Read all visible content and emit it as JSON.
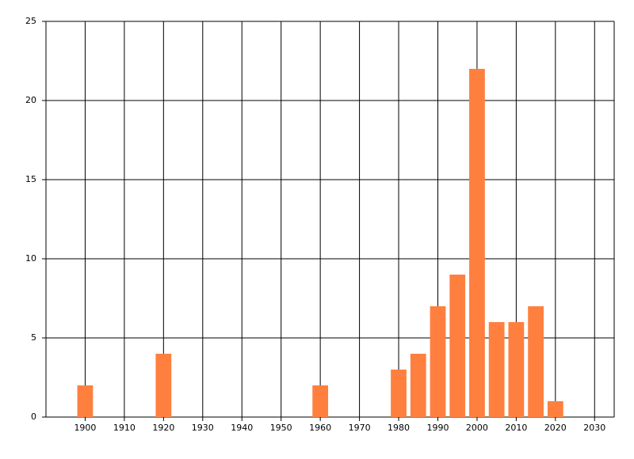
{
  "chart_data": {
    "type": "bar",
    "x": [
      1900,
      1920,
      1960,
      1980,
      1985,
      1990,
      1995,
      2000,
      2005,
      2010,
      2015,
      2020
    ],
    "values": [
      2,
      4,
      2,
      3,
      4,
      7,
      9,
      22,
      6,
      6,
      7,
      1
    ],
    "color": "#ff7f3f",
    "bar_width": 4,
    "xlim": [
      1890,
      2035
    ],
    "xticks": [
      1900,
      1910,
      1920,
      1930,
      1940,
      1950,
      1960,
      1970,
      1980,
      1990,
      2000,
      2010,
      2020,
      2030
    ],
    "ylim": [
      0,
      25
    ],
    "yticks": [
      0,
      5,
      10,
      15,
      20,
      25
    ],
    "grid": true
  }
}
